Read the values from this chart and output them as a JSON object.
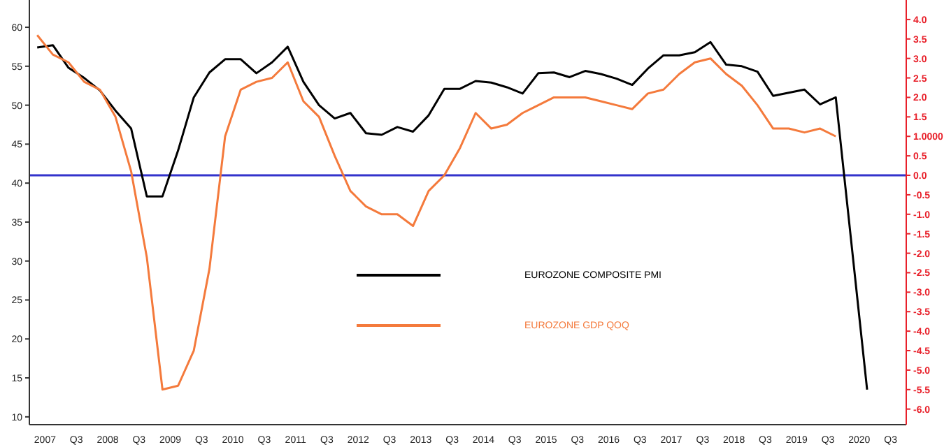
{
  "chart_data": {
    "type": "line",
    "x": [
      2007.125,
      2007.375,
      2007.625,
      2007.875,
      2008.125,
      2008.375,
      2008.625,
      2008.875,
      2009.125,
      2009.375,
      2009.625,
      2009.875,
      2010.125,
      2010.375,
      2010.625,
      2010.875,
      2011.125,
      2011.375,
      2011.625,
      2011.875,
      2012.125,
      2012.375,
      2012.625,
      2012.875,
      2013.125,
      2013.375,
      2013.625,
      2013.875,
      2014.125,
      2014.375,
      2014.625,
      2014.875,
      2015.125,
      2015.375,
      2015.625,
      2015.875,
      2016.125,
      2016.375,
      2016.625,
      2016.875,
      2017.125,
      2017.375,
      2017.625,
      2017.875,
      2018.125,
      2018.375,
      2018.625,
      2018.875,
      2019.125,
      2019.375,
      2019.625,
      2019.875
    ],
    "series": [
      {
        "name": "EUROZONE COMPOSITE PMI",
        "color": "#000000",
        "x": [
          2007.125,
          2007.375,
          2007.625,
          2007.875,
          2008.125,
          2008.375,
          2008.625,
          2008.875,
          2009.125,
          2009.375,
          2009.625,
          2009.875,
          2010.125,
          2010.375,
          2010.625,
          2010.875,
          2011.125,
          2011.375,
          2011.625,
          2011.875,
          2012.125,
          2012.375,
          2012.625,
          2012.875,
          2013.125,
          2013.375,
          2013.625,
          2013.875,
          2014.125,
          2014.375,
          2014.625,
          2014.875,
          2015.125,
          2015.375,
          2015.625,
          2015.875,
          2016.125,
          2016.375,
          2016.625,
          2016.875,
          2017.125,
          2017.375,
          2017.625,
          2017.875,
          2018.125,
          2018.375,
          2018.625,
          2018.875,
          2019.125,
          2019.375,
          2019.625,
          2019.875,
          2020.375
        ],
        "values": [
          57.4,
          57.7,
          54.8,
          53.5,
          51.9,
          49.3,
          47.0,
          38.3,
          38.3,
          44.2,
          51.0,
          54.2,
          55.9,
          55.9,
          54.1,
          55.5,
          57.5,
          53.0,
          50.0,
          48.3,
          49.0,
          46.4,
          46.2,
          47.2,
          46.6,
          48.7,
          52.1,
          52.1,
          53.1,
          52.9,
          52.3,
          51.5,
          54.1,
          54.2,
          53.6,
          54.4,
          54.0,
          53.4,
          52.6,
          54.7,
          56.4,
          56.4,
          56.8,
          58.1,
          55.2,
          55.0,
          54.3,
          51.2,
          51.6,
          52.0,
          50.1,
          51.0,
          13.5
        ]
      },
      {
        "name": "EUROZONE GDP QOQ",
        "color": "#f47a3c",
        "axis": "y2",
        "values": [
          3.6,
          3.1,
          2.9,
          2.4,
          2.2,
          1.5,
          0.1,
          -2.1,
          -5.5,
          -5.4,
          -4.5,
          -2.4,
          1.0,
          2.2,
          2.4,
          2.5,
          2.9,
          1.9,
          1.5,
          0.5,
          -0.4,
          -0.8,
          -1.0,
          -1.0,
          -1.3,
          -0.4,
          0.0,
          0.7,
          1.6,
          1.2,
          1.3,
          1.6,
          1.8,
          2.0,
          2.0,
          2.0,
          1.9,
          1.8,
          1.7,
          2.1,
          2.2,
          2.6,
          2.9,
          3.0,
          2.6,
          2.3,
          1.8,
          1.2,
          1.2,
          1.1,
          1.2,
          1.0
        ]
      }
    ],
    "xlim": [
      2007,
      2021
    ],
    "xticks": [
      {
        "value": 2007.25,
        "label": "2007"
      },
      {
        "value": 2007.75,
        "label": "Q3"
      },
      {
        "value": 2008.25,
        "label": "2008"
      },
      {
        "value": 2008.75,
        "label": "Q3"
      },
      {
        "value": 2009.25,
        "label": "2009"
      },
      {
        "value": 2009.75,
        "label": "Q3"
      },
      {
        "value": 2010.25,
        "label": "2010"
      },
      {
        "value": 2010.75,
        "label": "Q3"
      },
      {
        "value": 2011.25,
        "label": "2011"
      },
      {
        "value": 2011.75,
        "label": "Q3"
      },
      {
        "value": 2012.25,
        "label": "2012"
      },
      {
        "value": 2012.75,
        "label": "Q3"
      },
      {
        "value": 2013.25,
        "label": "2013"
      },
      {
        "value": 2013.75,
        "label": "Q3"
      },
      {
        "value": 2014.25,
        "label": "2014"
      },
      {
        "value": 2014.75,
        "label": "Q3"
      },
      {
        "value": 2015.25,
        "label": "2015"
      },
      {
        "value": 2015.75,
        "label": "Q3"
      },
      {
        "value": 2016.25,
        "label": "2016"
      },
      {
        "value": 2016.75,
        "label": "Q3"
      },
      {
        "value": 2017.25,
        "label": "2017"
      },
      {
        "value": 2017.75,
        "label": "Q3"
      },
      {
        "value": 2018.25,
        "label": "2018"
      },
      {
        "value": 2018.75,
        "label": "Q3"
      },
      {
        "value": 2019.25,
        "label": "2019"
      },
      {
        "value": 2019.75,
        "label": "Q3"
      },
      {
        "value": 2020.25,
        "label": "2020"
      },
      {
        "value": 2020.75,
        "label": "Q3"
      }
    ],
    "ylim": [
      9,
      63.5
    ],
    "yticks": [
      10,
      15,
      20,
      25,
      30,
      35,
      40,
      45,
      50,
      55,
      60
    ],
    "y2lim": [
      -6.4,
      4.5
    ],
    "y2ticks": [
      {
        "value": 4,
        "label": "4.0"
      },
      {
        "value": 3.5,
        "label": "3.5"
      },
      {
        "value": 3,
        "label": "3.0"
      },
      {
        "value": 2.5,
        "label": "2.5"
      },
      {
        "value": 2,
        "label": "2.0"
      },
      {
        "value": 1.5,
        "label": "1.5"
      },
      {
        "value": 1,
        "label": "1.0000"
      },
      {
        "value": 0.5,
        "label": "0.5"
      },
      {
        "value": 0,
        "label": "0.0"
      },
      {
        "value": -0.5,
        "label": "-0.5"
      },
      {
        "value": -1,
        "label": "-1.0"
      },
      {
        "value": -1.5,
        "label": "-1.5"
      },
      {
        "value": -2,
        "label": "-2.0"
      },
      {
        "value": -2.5,
        "label": "-2.5"
      },
      {
        "value": -3,
        "label": "-3.0"
      },
      {
        "value": -3.5,
        "label": "-3.5"
      },
      {
        "value": -4,
        "label": "-4.0"
      },
      {
        "value": -4.5,
        "label": "-4.5"
      },
      {
        "value": -5,
        "label": "-5.0"
      },
      {
        "value": -5.5,
        "label": "-5.5"
      },
      {
        "value": -6,
        "label": "-6.0"
      }
    ],
    "ref_lines": [
      {
        "axis": "y2",
        "value": 0,
        "color": "#3333cc"
      }
    ],
    "legend": "center",
    "grid": false,
    "marker": "none",
    "line_style": "solid"
  }
}
